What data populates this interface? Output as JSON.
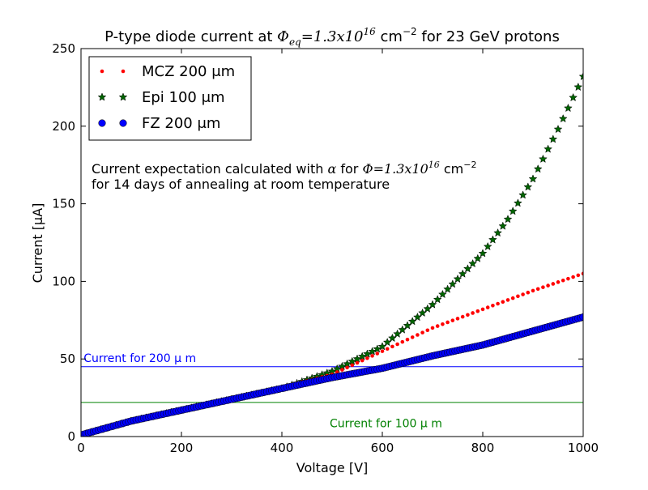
{
  "chart_data": {
    "type": "scatter",
    "title": {
      "prefix": "P-type diode current at ",
      "phi": "Φ",
      "phi_sub": "eq",
      "eq": "=1.3x10",
      "exp": "16",
      "unit": " cm",
      "unit_exp": "−2",
      "suffix": " for 23 GeV protons"
    },
    "xlabel": "Voltage [V]",
    "ylabel": "Current [μA]",
    "xlim": [
      0,
      1000
    ],
    "ylim": [
      0,
      250
    ],
    "xticks": [
      0,
      200,
      400,
      600,
      800,
      1000
    ],
    "yticks": [
      0,
      50,
      100,
      150,
      200,
      250
    ],
    "series": [
      {
        "name": "MCZ 200 μm",
        "marker": "point",
        "color": "#ff0000",
        "x_start": 0,
        "x_end": 1000,
        "x_step": 10,
        "anchors": [
          [
            0,
            1
          ],
          [
            100,
            10
          ],
          [
            200,
            17
          ],
          [
            300,
            24
          ],
          [
            400,
            32
          ],
          [
            500,
            40
          ],
          [
            600,
            55
          ],
          [
            700,
            70
          ],
          [
            800,
            82
          ],
          [
            900,
            94
          ],
          [
            1000,
            105
          ]
        ]
      },
      {
        "name": "Epi 100 μm",
        "marker": "star",
        "color": "#006400",
        "x_start": 0,
        "x_end": 1000,
        "x_step": 10,
        "anchors": [
          [
            0,
            1
          ],
          [
            100,
            10
          ],
          [
            200,
            17
          ],
          [
            300,
            24
          ],
          [
            400,
            31
          ],
          [
            500,
            42
          ],
          [
            600,
            58
          ],
          [
            700,
            85
          ],
          [
            800,
            118
          ],
          [
            850,
            140
          ],
          [
            900,
            166
          ],
          [
            950,
            198
          ],
          [
            1000,
            232
          ]
        ]
      },
      {
        "name": "FZ 200 μm",
        "marker": "circle",
        "color": "#0000ff",
        "x_start": 0,
        "x_end": 1000,
        "x_step": 5,
        "anchors": [
          [
            0,
            1
          ],
          [
            100,
            10
          ],
          [
            200,
            17
          ],
          [
            300,
            24
          ],
          [
            400,
            31
          ],
          [
            500,
            38
          ],
          [
            600,
            44
          ],
          [
            700,
            52
          ],
          [
            800,
            59
          ],
          [
            900,
            68
          ],
          [
            1000,
            77
          ]
        ]
      }
    ],
    "reference_lines": [
      {
        "name": "Current for 200 μ m",
        "y": 45,
        "color": "#0000ff",
        "label_x": 10,
        "label_y": 48,
        "anchor": "start"
      },
      {
        "name": "Current for 100 μ m",
        "y": 22,
        "color": "#008000",
        "label_x": 500,
        "label_y": 6,
        "anchor": "start"
      }
    ],
    "annotation": {
      "line1_prefix": "Current expectation calculated with ",
      "alpha": "α",
      "line1_mid": " for ",
      "phi": "Φ",
      "eq": "=1.3x10",
      "exp": "16",
      "unit": " cm",
      "unit_exp": "−2",
      "line2": "for 14 days of annealing at room temperature"
    },
    "legend": {
      "placement": "top-left"
    }
  }
}
